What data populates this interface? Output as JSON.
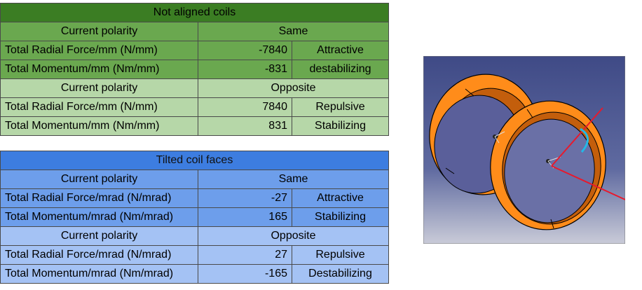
{
  "not_aligned": {
    "title": "Not aligned coils",
    "rows": [
      {
        "label": "Current polarity",
        "value": "Same"
      },
      {
        "label": "Total Radial Force/mm (N/mm)",
        "value": "-7840",
        "note": "Attractive"
      },
      {
        "label": "Total Momentum/mm (Nm/mm)",
        "value": "-831",
        "note": "destabilizing"
      },
      {
        "label": "Current polarity",
        "value": "Opposite"
      },
      {
        "label": "Total Radial Force/mm (N/mm)",
        "value": "7840",
        "note": "Repulsive"
      },
      {
        "label": "Total Momentum/mm (Nm/mm)",
        "value": "831",
        "note": "Stabilizing"
      }
    ]
  },
  "tilted": {
    "title": "Tilted coil faces",
    "rows": [
      {
        "label": "Current polarity",
        "value": "Same"
      },
      {
        "label": "Total Radial Force/mrad (N/mrad)",
        "value": "-27",
        "note": "Attractive"
      },
      {
        "label": "Total Momentum/mrad (Nm/mrad)",
        "value": "165",
        "note": "Stabilizing"
      },
      {
        "label": "Current polarity",
        "value": "Opposite"
      },
      {
        "label": "Total Radial Force/mrad (N/mrad)",
        "value": "27",
        "note": "Repulsive"
      },
      {
        "label": "Total Momentum/mrad (Nm/mrad)",
        "value": "-165",
        "note": "Destabilizing"
      }
    ]
  },
  "colors": {
    "green_header": "#3b7d23",
    "green_dark": "#6aa84f",
    "green_light": "#b6d7a8",
    "blue_header": "#3d7de0",
    "blue_mid": "#6d9eeb",
    "blue_light": "#a4c2f4",
    "coil_orange": "#ff8c1a",
    "angle_line": "#e8192c",
    "angle_arc": "#22b8e8"
  }
}
